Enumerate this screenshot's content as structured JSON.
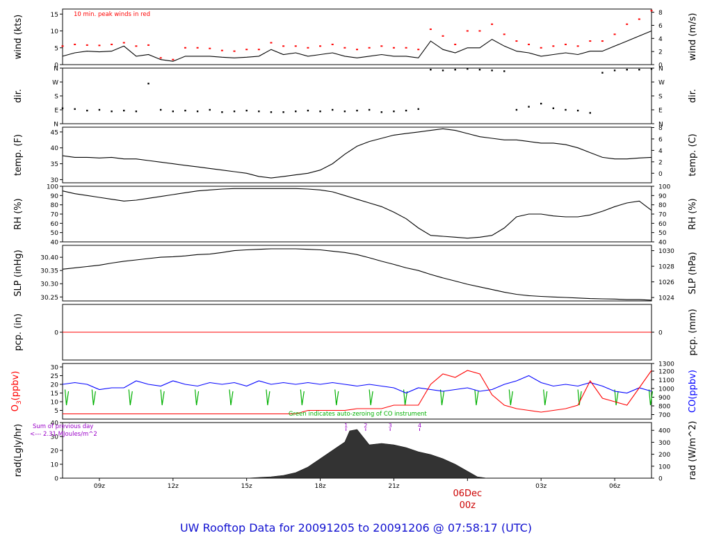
{
  "footer_title": "UW Rooftop Data for 20091205  to  20091206 @ 07:58:17  (UTC)",
  "colors": {
    "black": "#000000",
    "peak_red": "#ff0000",
    "o3_red": "#ff0000",
    "co_blue": "#0000ff",
    "zero_green": "#00b000",
    "note_purple": "#9a00c8",
    "title_blue": "#1010d0",
    "date_red": "#cc0000"
  },
  "chart_data": [
    {
      "type": "line",
      "id": "wind",
      "ylabel_left": "wind (kts)",
      "ylabel_right": "wind (m/s)",
      "ylim": [
        0,
        16.5
      ],
      "yticks_left": [
        0,
        5,
        10,
        15
      ],
      "yticks_right": [
        "0",
        "2",
        "4",
        "6",
        "8"
      ],
      "right_tick_values": [
        0,
        3.89,
        7.78,
        11.66,
        15.55
      ],
      "annotation": "10 min. peak winds in red",
      "x": [
        7.5,
        8,
        8.5,
        9,
        9.5,
        10,
        10.5,
        11,
        11.5,
        12,
        12.5,
        13,
        13.5,
        14,
        14.5,
        15,
        15.5,
        16,
        16.5,
        17,
        17.5,
        18,
        18.5,
        19,
        19.5,
        20,
        20.5,
        21,
        21.5,
        22,
        22.5,
        23,
        23.5,
        24,
        24.5,
        25,
        25.5,
        26,
        26.5,
        27,
        27.5,
        28,
        28.5,
        29,
        29.5,
        30,
        30.5,
        31,
        31.5
      ],
      "series": [
        {
          "values": [
            2.5,
            3.5,
            4,
            3.8,
            4,
            5.5,
            2.5,
            3,
            1.5,
            1,
            2.5,
            2.5,
            2.5,
            2.2,
            2,
            2.2,
            2.5,
            4.5,
            3,
            3.5,
            2.5,
            3,
            3.5,
            2.5,
            2,
            2.5,
            3,
            2.5,
            2.5,
            2,
            7,
            4.5,
            3.5,
            5,
            5,
            7.5,
            5.5,
            4,
            3.5,
            2.5,
            3,
            3.5,
            3,
            4,
            4,
            5.5,
            7,
            8.5,
            10
          ]
        },
        {
          "values": [
            5.5,
            6,
            5.8,
            5.7,
            6,
            6.5,
            5.5,
            5.8,
            2,
            1.5,
            5,
            5,
            4.8,
            4.2,
            4,
            4.5,
            4.5,
            6.5,
            5.5,
            5.5,
            5,
            5.5,
            6,
            5,
            4.5,
            5,
            5.5,
            5,
            5,
            4.5,
            10.5,
            8.5,
            6,
            10,
            10,
            12,
            9,
            7,
            6,
            5,
            5.5,
            6,
            5.5,
            7,
            7,
            9,
            12,
            13.5,
            16
          ]
        }
      ]
    },
    {
      "type": "scatter",
      "id": "dir",
      "ylabel_left": "dir.",
      "ylabel_right": "dir.",
      "ylim": [
        0,
        360
      ],
      "yticks_left": [
        "N",
        "E",
        "S",
        "W",
        "N"
      ],
      "yticks_right": [
        "N",
        "E",
        "S",
        "W",
        "N"
      ],
      "tick_values": [
        0,
        90,
        180,
        270,
        360
      ],
      "x": [
        7.5,
        8,
        8.5,
        9,
        9.5,
        10,
        10.5,
        11,
        11.5,
        12,
        12.5,
        13,
        13.5,
        14,
        14.5,
        15,
        15.5,
        16,
        16.5,
        17,
        17.5,
        18,
        18.5,
        19,
        19.5,
        20,
        20.5,
        21,
        21.5,
        22,
        22.5,
        23,
        23.5,
        24,
        24.5,
        25,
        25.5,
        26,
        26.5,
        27,
        27.5,
        28,
        28.5,
        29,
        29.5,
        30,
        30.5,
        31,
        31.5
      ],
      "values": [
        100,
        95,
        85,
        90,
        80,
        85,
        80,
        260,
        90,
        80,
        85,
        80,
        90,
        75,
        80,
        85,
        80,
        75,
        75,
        80,
        85,
        80,
        90,
        80,
        85,
        90,
        75,
        80,
        85,
        95,
        350,
        345,
        350,
        355,
        350,
        345,
        340,
        90,
        110,
        130,
        100,
        90,
        85,
        70,
        330,
        345,
        350,
        350,
        355
      ]
    },
    {
      "type": "line",
      "id": "temp",
      "ylabel_left": "temp. (F)",
      "ylabel_right": "temp. (C)",
      "ylim": [
        29,
        46.5
      ],
      "yticks_left": [
        30,
        35,
        40,
        45
      ],
      "yticks_right": [
        "0",
        "2",
        "4",
        "6",
        "8"
      ],
      "right_tick_values": [
        32,
        35.6,
        39.2,
        42.8,
        46.4
      ],
      "x": [
        7.5,
        8,
        8.5,
        9,
        9.5,
        10,
        10.5,
        11,
        11.5,
        12,
        12.5,
        13,
        13.5,
        14,
        14.5,
        15,
        15.5,
        16,
        16.5,
        17,
        17.5,
        18,
        18.5,
        19,
        19.5,
        20,
        20.5,
        21,
        21.5,
        22,
        22.5,
        23,
        23.5,
        24,
        24.5,
        25,
        25.5,
        26,
        26.5,
        27,
        27.5,
        28,
        28.5,
        29,
        29.5,
        30,
        30.5,
        31,
        31.5
      ],
      "values": [
        37.5,
        37,
        37,
        36.8,
        37,
        36.5,
        36.5,
        36,
        35.5,
        35,
        34.5,
        34,
        33.5,
        33,
        32.5,
        32,
        31,
        30.5,
        31,
        31.5,
        32,
        33,
        35,
        38,
        40.5,
        42,
        43,
        44,
        44.5,
        45,
        45.5,
        46,
        45.5,
        44.5,
        43.5,
        43,
        42.5,
        42.5,
        42,
        41.5,
        41.5,
        41,
        40,
        38.5,
        37,
        36.5,
        36.5,
        36.8,
        37
      ]
    },
    {
      "type": "line",
      "id": "rh",
      "ylabel_left": "RH (%)",
      "ylabel_right": "RH (%)",
      "ylim": [
        40,
        100
      ],
      "yticks_left": [
        40,
        50,
        60,
        70,
        80,
        90,
        100
      ],
      "yticks_right": [
        "40",
        "50",
        "60",
        "70",
        "80",
        "90",
        "100"
      ],
      "right_tick_values": [
        40,
        50,
        60,
        70,
        80,
        90,
        100
      ],
      "x": [
        7.5,
        8,
        8.5,
        9,
        9.5,
        10,
        10.5,
        11,
        11.5,
        12,
        12.5,
        13,
        13.5,
        14,
        14.5,
        15,
        15.5,
        16,
        16.5,
        17,
        17.5,
        18,
        18.5,
        19,
        19.5,
        20,
        20.5,
        21,
        21.5,
        22,
        22.5,
        23,
        23.5,
        24,
        24.5,
        25,
        25.5,
        26,
        26.5,
        27,
        27.5,
        28,
        28.5,
        29,
        29.5,
        30,
        30.5,
        31,
        31.5
      ],
      "values": [
        95,
        92,
        90,
        88,
        86,
        84,
        85,
        87,
        89,
        91,
        93,
        95,
        96,
        97,
        97.5,
        97.5,
        97.5,
        97.5,
        97.5,
        97.5,
        97,
        96,
        94,
        90,
        86,
        82,
        78,
        72,
        65,
        55,
        47,
        46,
        45,
        44,
        45,
        47,
        55,
        67,
        70,
        70,
        68,
        67,
        67,
        69,
        73,
        78,
        82,
        84,
        74
      ]
    },
    {
      "type": "line",
      "id": "slp",
      "ylabel_left": "SLP (inHg)",
      "ylabel_right": "SLP (hPa)",
      "ylim": [
        30.235,
        30.445
      ],
      "yticks_left": [
        "30.25",
        "30.30",
        "30.35",
        "30.40"
      ],
      "yticks_left_values": [
        30.25,
        30.3,
        30.35,
        30.4
      ],
      "yticks_right": [
        "1024",
        "1026",
        "1028",
        "1030"
      ],
      "right_tick_values": [
        30.248,
        30.307,
        30.366,
        30.425
      ],
      "x": [
        7.5,
        8,
        8.5,
        9,
        9.5,
        10,
        10.5,
        11,
        11.5,
        12,
        12.5,
        13,
        13.5,
        14,
        14.5,
        15,
        15.5,
        16,
        16.5,
        17,
        17.5,
        18,
        18.5,
        19,
        19.5,
        20,
        20.5,
        21,
        21.5,
        22,
        22.5,
        23,
        23.5,
        24,
        24.5,
        25,
        25.5,
        26,
        26.5,
        27,
        27.5,
        28,
        28.5,
        29,
        29.5,
        30,
        30.5,
        31,
        31.5
      ],
      "values": [
        30.355,
        30.36,
        30.365,
        30.37,
        30.378,
        30.385,
        30.39,
        30.395,
        30.4,
        30.402,
        30.405,
        30.41,
        30.412,
        30.418,
        30.425,
        30.428,
        30.43,
        30.432,
        30.432,
        30.432,
        30.43,
        30.428,
        30.423,
        30.418,
        30.41,
        30.398,
        30.385,
        30.373,
        30.36,
        30.35,
        30.335,
        30.322,
        30.31,
        30.298,
        30.288,
        30.278,
        30.268,
        30.26,
        30.255,
        30.252,
        30.25,
        30.248,
        30.246,
        30.244,
        30.243,
        30.242,
        30.24,
        30.24,
        30.238
      ]
    },
    {
      "type": "line",
      "id": "pcp",
      "ylabel_left": "pcp. (in)",
      "ylabel_right": "pcp. (mm)",
      "ylim": [
        -1,
        1
      ],
      "yticks_left": [
        0
      ],
      "yticks_right": [
        "0"
      ],
      "right_tick_values": [
        0
      ],
      "x": [
        7.5,
        31.5
      ],
      "values": [
        0,
        0
      ]
    },
    {
      "type": "line",
      "id": "o3co",
      "ylabel_left_main": "O",
      "ylabel_left_sub": "3",
      "ylabel_left_unit": "(ppbv)",
      "ylabel_right": "CO(ppbv)",
      "ylim": [
        0,
        32
      ],
      "yticks_left": [
        5,
        10,
        15,
        20,
        25,
        30
      ],
      "yticks_right": [
        "700",
        "800",
        "900",
        "1000",
        "1100",
        "1200",
        "1300"
      ],
      "right_tick_values": [
        2.6,
        7.6,
        12.6,
        17.6,
        22.6,
        27.6,
        32
      ],
      "annotation": "Green indicates auto-zeroing of CO instrument",
      "x": [
        7.5,
        8,
        8.5,
        9,
        9.5,
        10,
        10.5,
        11,
        11.5,
        12,
        12.5,
        13,
        13.5,
        14,
        14.5,
        15,
        15.5,
        16,
        16.5,
        17,
        17.5,
        18,
        18.5,
        19,
        19.5,
        20,
        20.5,
        21,
        21.5,
        22,
        22.5,
        23,
        23.5,
        24,
        24.5,
        25,
        25.5,
        26,
        26.5,
        27,
        27.5,
        28,
        28.5,
        29,
        29.5,
        30,
        30.5,
        31,
        31.5
      ],
      "series": [
        {
          "name": "O3",
          "values": [
            3,
            3,
            3,
            3,
            3,
            3,
            3,
            3,
            3,
            3,
            3,
            3,
            3,
            3,
            3,
            3,
            3,
            3,
            3,
            3,
            5,
            5,
            5,
            5,
            6,
            6,
            6,
            8,
            8,
            8,
            20,
            26,
            24,
            28,
            26,
            14,
            8,
            6,
            5,
            4,
            5,
            6,
            8,
            22,
            12,
            10,
            8,
            18,
            28
          ]
        },
        {
          "name": "CO",
          "values": [
            20,
            21,
            20,
            17,
            18,
            18,
            22,
            20,
            19,
            22,
            20,
            19,
            21,
            20,
            21,
            19,
            22,
            20,
            21,
            20,
            21,
            20,
            21,
            20,
            19,
            20,
            19,
            18,
            15,
            18,
            17,
            16,
            17,
            18,
            16,
            17,
            20,
            22,
            25,
            21,
            19,
            20,
            19,
            21,
            19,
            16,
            15,
            18,
            16
          ]
        }
      ],
      "zeroing_x": [
        7.6,
        8.7,
        10.2,
        11.5,
        12.9,
        14.3,
        15.8,
        17.2,
        18.6,
        20,
        21.4,
        22.9,
        24.3,
        25.7,
        27.1,
        28.5,
        30,
        31.4
      ]
    },
    {
      "type": "area",
      "id": "rad",
      "ylabel_left": "rad(Lgly/hr)",
      "ylabel_right": "rad (W/m^2)",
      "ylim": [
        0,
        40
      ],
      "yticks_left": [
        0,
        10,
        20,
        30,
        40
      ],
      "yticks_right": [
        "0",
        "100",
        "200",
        "300",
        "400"
      ],
      "right_tick_values": [
        0,
        8.6,
        17.2,
        25.8,
        34.4
      ],
      "note_lines": [
        "Sum of previous day",
        "<--- 2.31 MJoules/m^2"
      ],
      "markers": [
        "1",
        "2",
        "3",
        "4"
      ],
      "marker_x": [
        19.05,
        19.85,
        20.85,
        22.05
      ],
      "x": [
        15,
        16,
        16.5,
        17,
        17.5,
        18,
        18.5,
        19,
        19.2,
        19.5,
        20,
        20.5,
        21,
        21.5,
        22,
        22.5,
        23,
        23.5,
        24,
        24.4,
        24.8
      ],
      "values": [
        0,
        1,
        2,
        4,
        8,
        14,
        20,
        26,
        34,
        35,
        24,
        25,
        24,
        22,
        19,
        17,
        14,
        10,
        5,
        1,
        0
      ],
      "xticks": [
        "09z",
        "12z",
        "15z",
        "18z",
        "21z",
        "03z",
        "06z"
      ],
      "xtick_values": [
        9,
        12,
        15,
        18,
        21,
        27,
        30
      ],
      "date_label": "06Dec",
      "date_sub": "00z",
      "date_x": 24,
      "xlim": [
        7.5,
        31.5
      ]
    }
  ]
}
